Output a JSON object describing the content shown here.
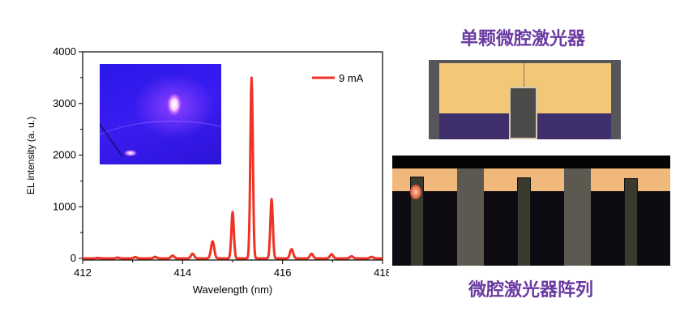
{
  "chart_data": {
    "type": "line",
    "xlabel": "Wavelength (nm)",
    "ylabel": "EL intensity (a. u.)",
    "xlim": [
      412,
      418
    ],
    "ylim": [
      -100,
      4000
    ],
    "xticks": [
      412,
      414,
      416,
      418
    ],
    "yticks": [
      0,
      1000,
      2000,
      3000,
      4000
    ],
    "legend": {
      "position": "top-right",
      "entries": [
        "9 mA"
      ]
    },
    "series": [
      {
        "name": "9 mA",
        "color": "#ee3324",
        "baseline": 0,
        "peaks": [
          {
            "x": 412.3,
            "y": 10
          },
          {
            "x": 412.7,
            "y": 15
          },
          {
            "x": 413.05,
            "y": 25
          },
          {
            "x": 413.45,
            "y": 30
          },
          {
            "x": 413.8,
            "y": 55
          },
          {
            "x": 414.2,
            "y": 90
          },
          {
            "x": 414.6,
            "y": 330
          },
          {
            "x": 415.0,
            "y": 900
          },
          {
            "x": 415.38,
            "y": 3500
          },
          {
            "x": 415.78,
            "y": 1150
          },
          {
            "x": 416.18,
            "y": 180
          },
          {
            "x": 416.58,
            "y": 90
          },
          {
            "x": 416.98,
            "y": 80
          },
          {
            "x": 417.38,
            "y": 40
          },
          {
            "x": 417.78,
            "y": 30
          }
        ]
      }
    ]
  },
  "labels": {
    "single_title": "单颗微腔激光器",
    "array_title": "微腔激光器阵列"
  }
}
